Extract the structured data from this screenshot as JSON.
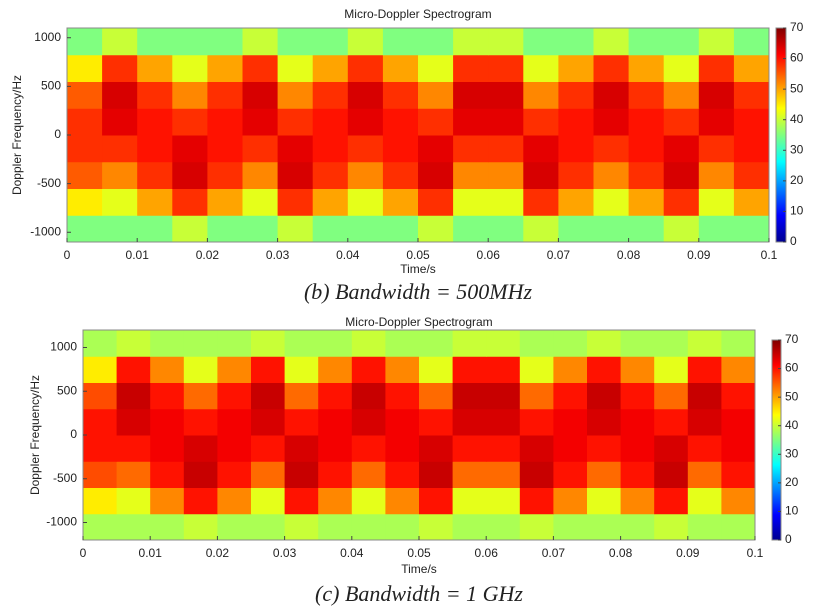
{
  "chart_data": [
    {
      "type": "heatmap",
      "title": "Micro-Doppler Spectrogram",
      "xlabel": "Time/s",
      "ylabel": "Doppler Frequency/Hz",
      "caption": "(b) Bandwidth = 500MHz",
      "xlim": [
        0,
        0.1
      ],
      "ylim": [
        -1100,
        1100
      ],
      "xticks": [
        0,
        0.01,
        0.02,
        0.03,
        0.04,
        0.05,
        0.06,
        0.07,
        0.08,
        0.09,
        0.1
      ],
      "yticks": [
        -1000,
        -500,
        0,
        500,
        1000
      ],
      "clim": [
        0,
        70
      ],
      "cticks": [
        0,
        10,
        20,
        30,
        40,
        50,
        60,
        70
      ],
      "colormap": "jet",
      "x": [
        0.0025,
        0.0075,
        0.0125,
        0.0175,
        0.0225,
        0.0275,
        0.0325,
        0.0375,
        0.0425,
        0.0475,
        0.0525,
        0.0575,
        0.0625,
        0.0675,
        0.0725,
        0.0775,
        0.0825,
        0.0875,
        0.0925,
        0.0975
      ],
      "y": [
        -962.5,
        -687.5,
        -412.5,
        -137.5,
        137.5,
        412.5,
        687.5,
        962.5
      ],
      "z": [
        [
          35,
          35,
          35,
          40,
          35,
          35,
          40,
          35,
          35,
          35,
          40,
          35,
          35,
          40,
          35,
          35,
          35,
          40,
          35,
          35
        ],
        [
          45,
          42,
          50,
          58,
          50,
          42,
          58,
          50,
          42,
          50,
          58,
          42,
          42,
          58,
          50,
          42,
          50,
          58,
          42,
          50
        ],
        [
          55,
          52,
          58,
          64,
          58,
          52,
          64,
          58,
          52,
          58,
          64,
          52,
          52,
          64,
          58,
          52,
          58,
          64,
          52,
          58
        ],
        [
          58,
          58,
          60,
          63,
          60,
          58,
          63,
          60,
          58,
          60,
          63,
          58,
          58,
          63,
          60,
          58,
          60,
          63,
          58,
          60
        ],
        [
          58,
          63,
          60,
          58,
          60,
          63,
          58,
          60,
          63,
          60,
          58,
          63,
          63,
          58,
          60,
          63,
          60,
          58,
          63,
          60
        ],
        [
          55,
          64,
          58,
          52,
          58,
          64,
          52,
          58,
          64,
          58,
          52,
          64,
          64,
          52,
          58,
          64,
          58,
          52,
          64,
          58
        ],
        [
          45,
          58,
          50,
          42,
          50,
          58,
          42,
          50,
          58,
          50,
          42,
          58,
          58,
          42,
          50,
          58,
          50,
          42,
          58,
          50
        ],
        [
          35,
          40,
          35,
          35,
          35,
          40,
          35,
          35,
          40,
          35,
          35,
          40,
          40,
          35,
          35,
          40,
          35,
          35,
          40,
          35
        ]
      ]
    },
    {
      "type": "heatmap",
      "title": "Micro-Doppler Spectrogram",
      "xlabel": "Time/s",
      "ylabel": "Doppler Frequency/Hz",
      "caption": "(c) Bandwidth = 1 GHz",
      "xlim": [
        0,
        0.1
      ],
      "ylim": [
        -1200,
        1200
      ],
      "xticks": [
        0,
        0.01,
        0.02,
        0.03,
        0.04,
        0.05,
        0.06,
        0.07,
        0.08,
        0.09,
        0.1
      ],
      "yticks": [
        -1000,
        -500,
        0,
        500,
        1000
      ],
      "clim": [
        0,
        70
      ],
      "cticks": [
        0,
        10,
        20,
        30,
        40,
        50,
        60,
        70
      ],
      "colormap": "jet",
      "x": [
        0.0025,
        0.0075,
        0.0125,
        0.0175,
        0.0225,
        0.0275,
        0.0325,
        0.0375,
        0.0425,
        0.0475,
        0.0525,
        0.0575,
        0.0625,
        0.0675,
        0.0725,
        0.0775,
        0.0825,
        0.0875,
        0.0925,
        0.0975
      ],
      "y": [
        -1050,
        -750,
        -450,
        -150,
        150,
        450,
        750,
        1050
      ],
      "z": [
        [
          38,
          38,
          38,
          40,
          38,
          38,
          40,
          38,
          38,
          38,
          40,
          38,
          38,
          40,
          38,
          38,
          38,
          40,
          38,
          38
        ],
        [
          45,
          42,
          52,
          60,
          52,
          42,
          60,
          52,
          42,
          52,
          60,
          42,
          42,
          60,
          52,
          42,
          52,
          60,
          42,
          52
        ],
        [
          56,
          54,
          60,
          65,
          60,
          54,
          65,
          60,
          54,
          60,
          65,
          54,
          54,
          65,
          60,
          54,
          60,
          65,
          54,
          60
        ],
        [
          60,
          60,
          62,
          64,
          62,
          60,
          64,
          62,
          60,
          62,
          64,
          60,
          60,
          64,
          62,
          60,
          62,
          64,
          60,
          62
        ],
        [
          60,
          64,
          62,
          60,
          62,
          64,
          60,
          62,
          64,
          62,
          60,
          64,
          64,
          60,
          62,
          64,
          62,
          60,
          64,
          62
        ],
        [
          56,
          65,
          60,
          54,
          60,
          65,
          54,
          60,
          65,
          60,
          54,
          65,
          65,
          54,
          60,
          65,
          60,
          54,
          65,
          60
        ],
        [
          45,
          60,
          52,
          42,
          52,
          60,
          42,
          52,
          60,
          52,
          42,
          60,
          60,
          42,
          52,
          60,
          52,
          42,
          60,
          52
        ],
        [
          38,
          40,
          38,
          38,
          38,
          40,
          38,
          38,
          40,
          38,
          38,
          40,
          40,
          38,
          38,
          40,
          38,
          38,
          40,
          38
        ]
      ]
    }
  ]
}
